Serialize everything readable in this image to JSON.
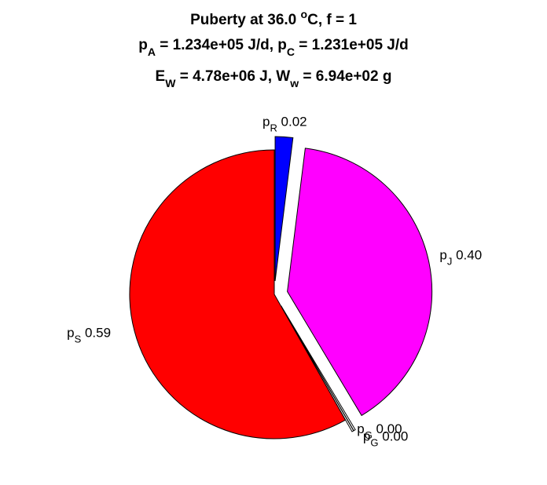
{
  "chart_data": {
    "type": "pie",
    "title": {
      "line1": {
        "text": "Puberty at 36.0 ",
        "sup": "o",
        "tail": "C, f = 1"
      },
      "line2": [
        {
          "base": "p",
          "sub": "A",
          "text": " = 1.234e+05 J/d,  "
        },
        {
          "base": "p",
          "sub": "C",
          "text": " = 1.231e+05 J/d"
        }
      ],
      "line3": [
        {
          "base": "E",
          "sub": "W",
          "text": " = 4.78e+06 J, "
        },
        {
          "base": "W",
          "sub": "w",
          "text": " = 6.94e+02 g"
        }
      ]
    },
    "slices": [
      {
        "name": "p",
        "sub": "R",
        "value_label": "0.02",
        "value": 0.02,
        "color": "#0000ff",
        "exploded": true
      },
      {
        "name": "p",
        "sub": "J",
        "value_label": "0.40",
        "value": 0.4,
        "color": "#ff00ff",
        "exploded": true
      },
      {
        "name": "p",
        "sub": "G",
        "value_label": "0.00",
        "value": 0.002,
        "color": "#ffffff",
        "exploded": true
      },
      {
        "name": "p",
        "sub": "G",
        "value_label": "0.00",
        "value": 0.002,
        "color": "#ffffff",
        "exploded": true
      },
      {
        "name": "p",
        "sub": "S",
        "value_label": "0.59",
        "value": 0.59,
        "color": "#ff0000",
        "exploded": false
      }
    ]
  }
}
